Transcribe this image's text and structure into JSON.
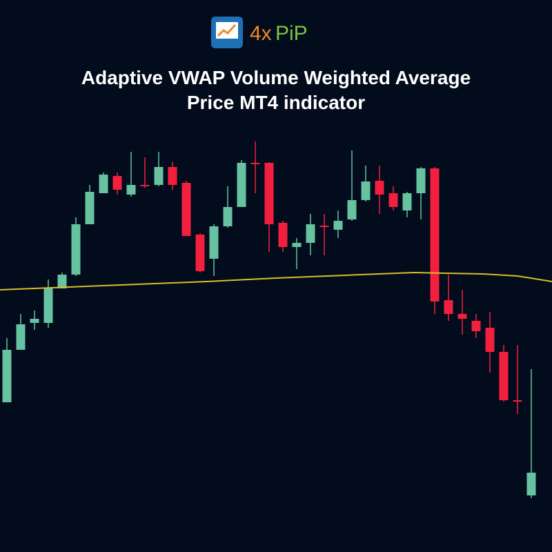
{
  "logo": [
    "4x",
    "PiP"
  ],
  "chart_data": {
    "type": "candlestick",
    "title": "Adaptive VWAP Volume Weighted Average Price MT4 indicator",
    "open": [
      217,
      293,
      332,
      332,
      382,
      402,
      475,
      520,
      545,
      518,
      532,
      532,
      558,
      535,
      460,
      425,
      472,
      500,
      564,
      564,
      477,
      442,
      448,
      473,
      467,
      482,
      510,
      538,
      520,
      495,
      520,
      556
    ],
    "close": [
      293,
      330,
      338,
      382,
      402,
      475,
      522,
      547,
      525,
      532,
      530,
      558,
      532,
      458,
      407,
      472,
      500,
      564,
      562,
      475,
      442,
      448,
      475,
      471,
      480,
      510,
      537,
      518,
      500,
      520,
      556,
      363
    ],
    "high": [
      310,
      345,
      350,
      395,
      405,
      485,
      532,
      550,
      550,
      580,
      572,
      580,
      565,
      538,
      462,
      475,
      530,
      568,
      595,
      565,
      480,
      455,
      490,
      490,
      495,
      582,
      560,
      560,
      530,
      522,
      558,
      558
    ],
    "low": [
      217,
      293,
      322,
      325,
      382,
      400,
      475,
      520,
      518,
      515,
      528,
      530,
      525,
      458,
      405,
      400,
      470,
      500,
      520,
      435,
      435,
      410,
      430,
      430,
      455,
      480,
      508,
      490,
      495,
      485,
      482,
      345
    ],
    "open_b": [
      365,
      345,
      335,
      325,
      290,
      220,
      82
    ],
    "close_b": [
      345,
      338,
      320,
      290,
      220,
      218,
      115
    ],
    "high_b": [
      402,
      380,
      345,
      348,
      300,
      300,
      265
    ],
    "low_b": [
      335,
      315,
      310,
      260,
      218,
      200,
      78
    ],
    "up_color": "#66c2a0",
    "down_color": "#f2203e",
    "vwap": {
      "name": "VWAP",
      "color": "#d9bf2b",
      "x": [
        -0.5,
        4.5,
        9.5,
        14.5,
        19.5,
        24.5,
        29.5,
        34.5,
        37,
        39.5
      ],
      "values": [
        380,
        384,
        388,
        392,
        397,
        401,
        405,
        403,
        400,
        392
      ]
    },
    "xlim": [
      -0.5,
      39.5
    ],
    "ylim": [
      0,
      600
    ]
  }
}
